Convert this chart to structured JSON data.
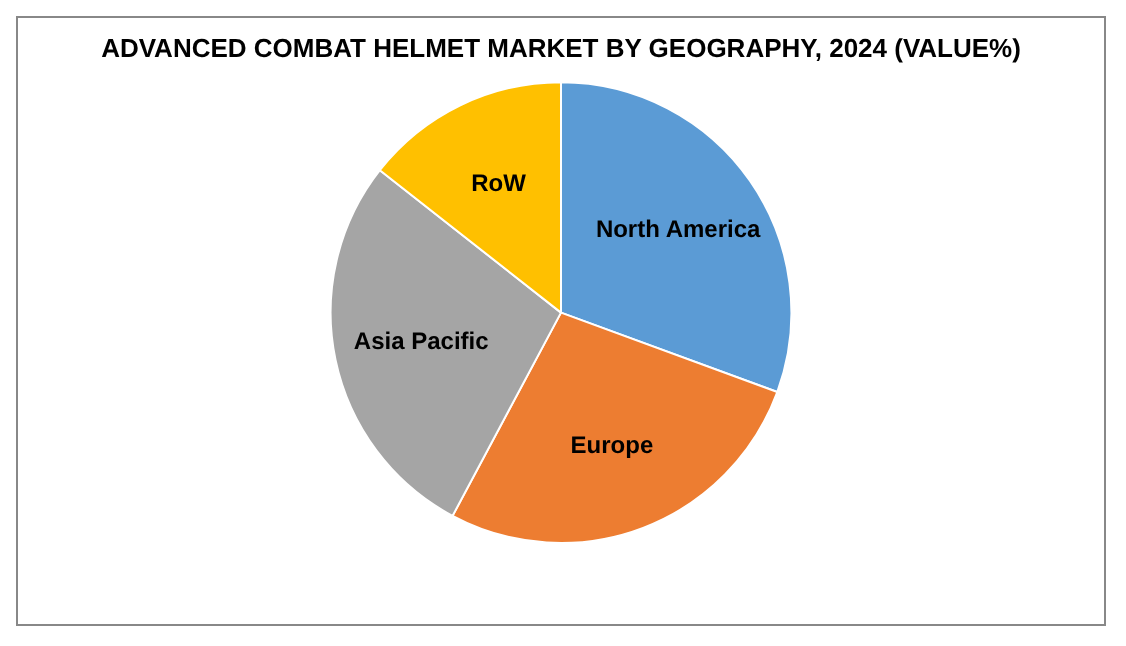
{
  "chart_data": {
    "type": "pie",
    "title": "ADVANCED COMBAT HELMET MARKET BY GEOGRAPHY, 2024 (VALUE%)",
    "categories": [
      "North America",
      "Europe",
      "Asia Pacific",
      "RoW"
    ],
    "values": [
      30.6,
      27.2,
      27.8,
      14.4
    ],
    "colors": [
      "#5b9bd5",
      "#ed7d31",
      "#a5a5a5",
      "#ffc000"
    ],
    "legend": false
  }
}
